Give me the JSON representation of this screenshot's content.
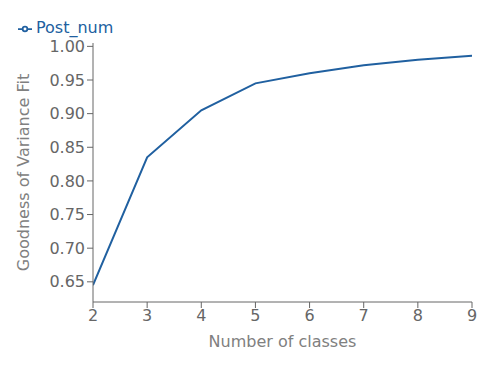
{
  "chart_data": {
    "type": "line",
    "x": [
      2,
      3,
      4,
      5,
      6,
      7,
      8,
      9
    ],
    "series": [
      {
        "name": "Post_num",
        "color": "#2060a0",
        "values": [
          0.645,
          0.835,
          0.905,
          0.945,
          0.96,
          0.972,
          0.98,
          0.986
        ]
      }
    ],
    "xlabel": "Number of classes",
    "ylabel": "Goodness of Variance Fit",
    "xlim": [
      2,
      9
    ],
    "ylim": [
      0.62,
      1.005
    ],
    "xticks": [
      2,
      3,
      4,
      5,
      6,
      7,
      8,
      9
    ],
    "yticks": [
      0.65,
      {
        "value": 0.7,
        "label": "0.70"
      },
      0.75,
      {
        "value": 0.8,
        "label": "0.80"
      },
      0.85,
      {
        "value": 0.9,
        "label": "0.90"
      },
      0.95,
      {
        "value": 1.0,
        "label": "1.00"
      }
    ],
    "legend": "upper left",
    "grid": false
  }
}
